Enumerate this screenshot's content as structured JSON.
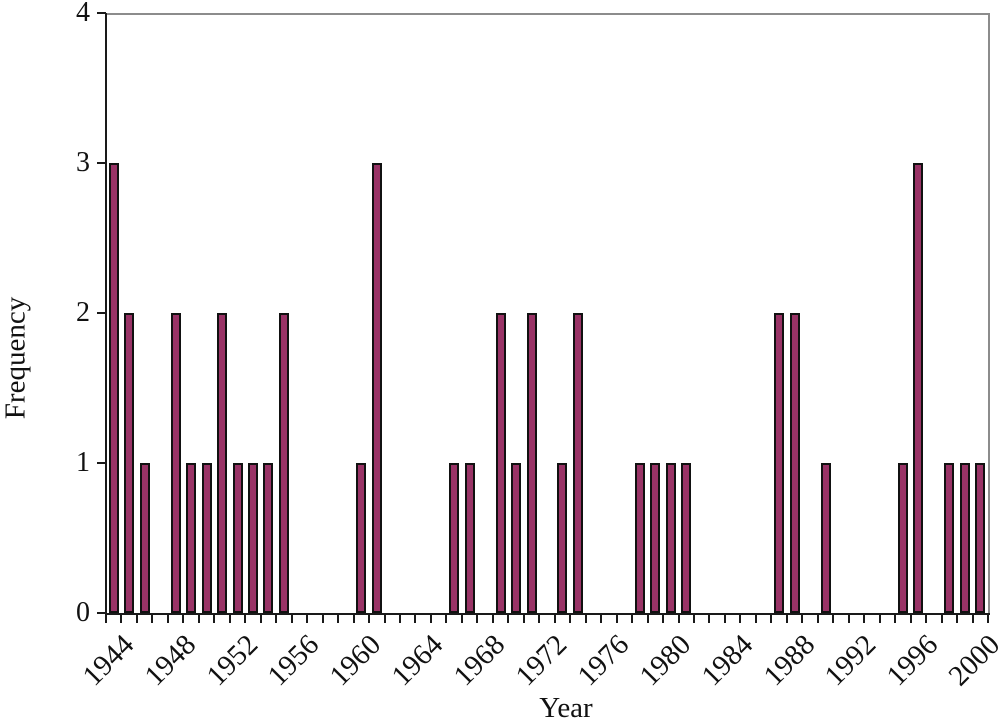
{
  "chart_data": {
    "type": "bar",
    "title": "",
    "xlabel": "Year",
    "ylabel": "Frequency",
    "ylim": [
      0,
      4
    ],
    "y_ticks": [
      "0",
      "1",
      "2",
      "3",
      "4"
    ],
    "categories": [
      1944,
      1945,
      1946,
      1947,
      1948,
      1949,
      1950,
      1951,
      1952,
      1953,
      1954,
      1955,
      1956,
      1957,
      1958,
      1959,
      1960,
      1961,
      1962,
      1963,
      1964,
      1965,
      1966,
      1967,
      1968,
      1969,
      1970,
      1971,
      1972,
      1973,
      1974,
      1975,
      1976,
      1977,
      1978,
      1979,
      1980,
      1981,
      1982,
      1983,
      1984,
      1985,
      1986,
      1987,
      1988,
      1989,
      1990,
      1991,
      1992,
      1993,
      1994,
      1995,
      1996,
      1997,
      1998,
      1999,
      2000
    ],
    "values": [
      3,
      2,
      1,
      0,
      2,
      1,
      1,
      2,
      1,
      1,
      1,
      2,
      0,
      0,
      0,
      0,
      1,
      3,
      0,
      0,
      0,
      0,
      1,
      1,
      0,
      2,
      1,
      2,
      0,
      1,
      2,
      0,
      0,
      0,
      1,
      1,
      1,
      1,
      0,
      0,
      0,
      0,
      0,
      2,
      2,
      0,
      1,
      0,
      0,
      0,
      0,
      1,
      3,
      0,
      1,
      1,
      1
    ],
    "x_tick_labels": [
      "1944",
      "1948",
      "1952",
      "1956",
      "1960",
      "1964",
      "1968",
      "1972",
      "1976",
      "1980",
      "1984",
      "1988",
      "1992",
      "1996",
      "2000"
    ],
    "x_label_every": 4,
    "grid": "off",
    "legend": "none",
    "colors": {
      "bar_fill": "#993366",
      "bar_border": "#111111",
      "axis": "#1a1a1a",
      "frame": "#8c8c8c",
      "background": "#ffffff"
    }
  }
}
